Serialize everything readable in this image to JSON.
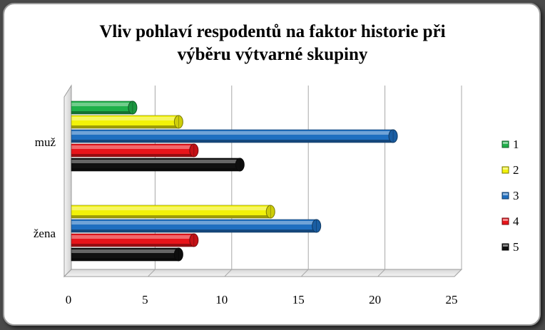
{
  "chart_data": {
    "type": "bar",
    "orientation": "horizontal",
    "title_lines": [
      "Vliv pohlaví respodentů na faktor historie při",
      "výběru výtvarné skupiny"
    ],
    "categories": [
      "muž",
      "žena"
    ],
    "series": [
      {
        "name": "1",
        "color": "#1fb04a",
        "values": [
          4,
          0
        ]
      },
      {
        "name": "2",
        "color": "#f2f20a",
        "values": [
          7,
          13
        ]
      },
      {
        "name": "3",
        "color": "#1f6fc0",
        "values": [
          21,
          16
        ]
      },
      {
        "name": "4",
        "color": "#e8141a",
        "values": [
          8,
          8
        ]
      },
      {
        "name": "5",
        "color": "#111111",
        "values": [
          11,
          7
        ]
      }
    ],
    "xlim": [
      0,
      25
    ],
    "xticks": [
      0,
      5,
      10,
      15,
      20,
      25
    ],
    "grid": true,
    "legend_position": "right",
    "xlabel": "",
    "ylabel": ""
  }
}
